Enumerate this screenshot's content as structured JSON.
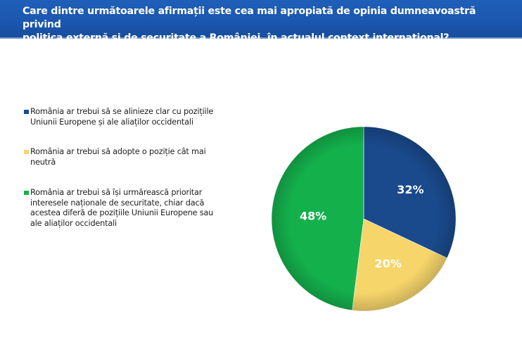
{
  "header": {
    "title_line1": "Care dintre următoarele afirmații este cea mai apropiată de opinia dumneavoastră privind",
    "title_line2": "politica externă și de securitate a României, în actualul context internațional?"
  },
  "chart_data": {
    "type": "pie",
    "title": "Care dintre următoarele afirmații este cea mai apropiată de opinia dumneavoastră privind politica externă și de securitate a României, în actualul context internațional?",
    "categories": [
      "România ar trebui să se alinieze clar cu pozițiile Uniunii Europene și ale aliaților occidentali",
      "România ar trebui să adopte o poziție cât mai neutră",
      "România ar trebui să își urmărească prioritar interesele naționale de securitate, chiar dacă acestea diferă de pozițiile Uniunii Europene sau ale aliaților occidentali"
    ],
    "values": [
      32,
      20,
      48
    ],
    "labels": [
      "32%",
      "20%",
      "48%"
    ],
    "colors": [
      "#1a4a8c",
      "#f6d56a",
      "#14b04c"
    ],
    "legend_position": "left",
    "legend": [
      {
        "line1": "România ar trebui să se alinieze clar cu pozițiile",
        "line2": "Uniunii Europene și ale aliaților occidentali"
      },
      {
        "line1": "România ar trebui să adopte o poziție cât mai",
        "line2": "neutră"
      },
      {
        "line1": "România ar trebui să își urmărească prioritar",
        "line2": "interesele naționale de securitate, chiar dacă",
        "line3": "acestea diferă de pozițiile Uniunii Europene sau",
        "line4": "ale aliaților occidentali"
      }
    ]
  }
}
